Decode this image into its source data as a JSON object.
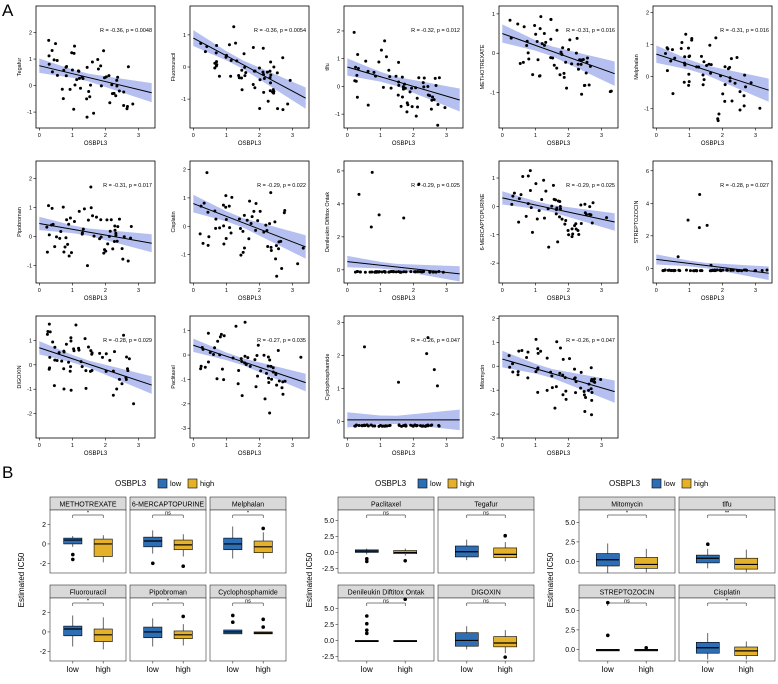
{
  "panel_labels": {
    "a": "A",
    "b": "B"
  },
  "colors": {
    "band": "#5b74e0",
    "line": "#000000",
    "low": "#2e6eb5",
    "high": "#e5b02a",
    "strip": "#d9d9d9"
  },
  "chart_data": [
    {
      "type": "scatter-grid",
      "panel": "A",
      "xlabel": "OSBPL3",
      "xlim": [
        -0.1,
        3.5
      ],
      "xticks": [
        0,
        1,
        2,
        3
      ],
      "plots": [
        {
          "ylabel": "Tegafur",
          "annotation": "R = -0.36, p = 0.0048",
          "ylim": [
            -1.6,
            3.0
          ],
          "yticks": [
            -1,
            0,
            1,
            2
          ],
          "fit": [
            0.75,
            -0.3
          ],
          "band": 0.35,
          "seed": 11
        },
        {
          "ylabel": "Fluorouracil",
          "annotation": "R = -0.36, p = 0.0054",
          "ylim": [
            -1.9,
            1.9
          ],
          "yticks": [
            -1,
            0,
            1
          ],
          "fit": [
            0.9,
            -0.55
          ],
          "band": 0.32,
          "seed": 12
        },
        {
          "ylabel": "tlfu",
          "annotation": "R = -0.32, p = 0.012",
          "ylim": [
            -1.5,
            2.9
          ],
          "yticks": [
            -1,
            0,
            1,
            2
          ],
          "fit": [
            0.7,
            -0.35
          ],
          "band": 0.4,
          "seed": 13
        },
        {
          "ylabel": "METHOTREXATE",
          "annotation": "R = -0.31, p = 0.016",
          "ylim": [
            -1.9,
            1.2
          ],
          "yticks": [
            -1,
            0,
            1
          ],
          "fit": [
            0.5,
            -0.3
          ],
          "band": 0.3,
          "seed": 14
        },
        {
          "ylabel": "Melphalan",
          "annotation": "R = -0.31, p = 0.016",
          "ylim": [
            -1.6,
            2.2
          ],
          "yticks": [
            -1,
            0,
            1,
            2
          ],
          "fit": [
            0.7,
            -0.33
          ],
          "band": 0.35,
          "seed": 15
        },
        {
          "ylabel": "Pipobroman",
          "annotation": "R = -0.31, p = 0.017",
          "ylim": [
            -1.6,
            2.6
          ],
          "yticks": [
            -1,
            0,
            1,
            2
          ],
          "fit": [
            0.45,
            -0.2
          ],
          "band": 0.3,
          "seed": 16
        },
        {
          "ylabel": "Cisplatin",
          "annotation": "R = -0.29, p = 0.022",
          "ylim": [
            -2.0,
            2.3
          ],
          "yticks": [
            -1,
            0,
            1,
            2
          ],
          "fit": [
            0.8,
            -0.45
          ],
          "band": 0.4,
          "seed": 17
        },
        {
          "ylabel": "Denileukin Diftitox Ontak",
          "annotation": "R = -0.29, p = 0.025",
          "ylim": [
            -0.8,
            6.6
          ],
          "yticks": [
            0,
            2,
            4,
            6
          ],
          "fit": [
            0.5,
            -0.22
          ],
          "band": 0.45,
          "seed": 18,
          "flat": true
        },
        {
          "ylabel": "6-MERCAPTOPURINE",
          "annotation": "R = -0.29, p = 0.025",
          "ylim": [
            -2.7,
            1.6
          ],
          "yticks": [
            -2,
            -1,
            0,
            1
          ],
          "fit": [
            0.3,
            -0.25
          ],
          "band": 0.3,
          "seed": 19
        },
        {
          "ylabel": "STREPTOZOCIN",
          "annotation": "R = -0.28, p = 0.027",
          "ylim": [
            -0.9,
            6.6
          ],
          "yticks": [
            0,
            2,
            4,
            6
          ],
          "fit": [
            0.55,
            -0.25
          ],
          "band": 0.4,
          "seed": 20,
          "flat": true
        },
        {
          "ylabel": "DIGOXIN",
          "annotation": "R = -0.28, p = 0.029",
          "ylim": [
            -3.0,
            2.0
          ],
          "yticks": [
            -2,
            -1,
            0,
            1
          ],
          "fit": [
            0.7,
            -0.45
          ],
          "band": 0.35,
          "seed": 21
        },
        {
          "ylabel": "Paclitaxel",
          "annotation": "R = -0.27, p = 0.035",
          "ylim": [
            -3.4,
            1.6
          ],
          "yticks": [
            -3,
            -2,
            -1,
            0,
            1
          ],
          "fit": [
            0.4,
            -0.45
          ],
          "band": 0.35,
          "seed": 22
        },
        {
          "ylabel": "Cyclophosphamide",
          "annotation": "R = -0.26, p = 0.047",
          "ylim": [
            -0.5,
            3.2
          ],
          "yticks": [
            0,
            1,
            2,
            3
          ],
          "fit": [
            0.05,
            0.0
          ],
          "band": 0.3,
          "seed": 23,
          "flat": true
        },
        {
          "ylabel": "Mitomycin",
          "annotation": "R = -0.26, p = 0.047",
          "ylim": [
            -3.0,
            2.1
          ],
          "yticks": [
            -3,
            -2,
            -1,
            0,
            1,
            2
          ],
          "fit": [
            0.3,
            -0.4
          ],
          "band": 0.45,
          "seed": 24
        }
      ]
    },
    {
      "type": "boxplot-grid",
      "panel": "B",
      "legend_title": "OSBPL3",
      "legend_labels": [
        "low",
        "high"
      ],
      "ylabel": "Estimated IC50",
      "categories": [
        "low",
        "high"
      ],
      "groups": [
        {
          "yticks": [
            -2,
            0,
            2
          ],
          "ylim": [
            -3.0,
            3.5
          ],
          "facets": [
            {
              "title": "METHOTREXATE",
              "sig": "*",
              "low": {
                "q1": 0.0,
                "med": 0.4,
                "q3": 0.6,
                "wl": -0.3,
                "wh": 0.8,
                "out": [
                  -1.1,
                  -1.6
                ]
              },
              "high": {
                "q1": -1.3,
                "med": 0.0,
                "q3": 0.5,
                "wl": -1.9,
                "wh": 0.9,
                "out": []
              }
            },
            {
              "title": "6-MERCAPTOPURINE",
              "sig": "ns",
              "low": {
                "q1": -0.3,
                "med": 0.3,
                "q3": 0.7,
                "wl": -1.0,
                "wh": 1.4,
                "out": [
                  -2.0
                ]
              },
              "high": {
                "q1": -0.6,
                "med": -0.1,
                "q3": 0.4,
                "wl": -1.3,
                "wh": 1.0,
                "out": [
                  -2.3
                ]
              }
            },
            {
              "title": "Melphalan",
              "sig": "*",
              "low": {
                "q1": -0.6,
                "med": 0.0,
                "q3": 0.6,
                "wl": -1.5,
                "wh": 1.8,
                "out": []
              },
              "high": {
                "q1": -0.9,
                "med": -0.3,
                "q3": 0.3,
                "wl": -1.5,
                "wh": 1.2,
                "out": [
                  1.6
                ]
              }
            },
            {
              "title": "Fluorouracil",
              "sig": "*",
              "low": {
                "q1": -0.4,
                "med": 0.3,
                "q3": 0.6,
                "wl": -1.5,
                "wh": 1.7,
                "out": []
              },
              "high": {
                "q1": -1.0,
                "med": -0.3,
                "q3": 0.3,
                "wl": -1.8,
                "wh": 1.5,
                "out": []
              }
            },
            {
              "title": "Pipobroman",
              "sig": "*",
              "low": {
                "q1": -0.6,
                "med": 0.0,
                "q3": 0.5,
                "wl": -1.5,
                "wh": 1.4,
                "out": []
              },
              "high": {
                "q1": -0.7,
                "med": -0.3,
                "q3": 0.1,
                "wl": -1.4,
                "wh": 0.8,
                "out": [
                  1.6
                ]
              }
            },
            {
              "title": "Cyclophosphamide",
              "sig": "ns",
              "low": {
                "q1": -0.2,
                "med": 0.0,
                "q3": 0.2,
                "wl": -0.2,
                "wh": 0.2,
                "out": [
                  1.7,
                  1.0
                ]
              },
              "high": {
                "q1": -0.2,
                "med": -0.1,
                "q3": 0.0,
                "wl": -0.2,
                "wh": 0.0,
                "out": [
                  1.3,
                  0.5
                ]
              }
            }
          ]
        },
        {
          "yticks": [
            -2.5,
            0.0,
            2.5,
            5.0
          ],
          "ylim": [
            -3.2,
            6.6
          ],
          "facets": [
            {
              "title": "Paclitaxel",
              "sig": "ns",
              "low": {
                "q1": 0.0,
                "med": 0.2,
                "q3": 0.4,
                "wl": -0.3,
                "wh": 0.6,
                "out": [
                  -1.0,
                  -1.4
                ]
              },
              "high": {
                "q1": -0.2,
                "med": 0.0,
                "q3": 0.3,
                "wl": -0.5,
                "wh": 0.6,
                "out": [
                  -1.3
                ]
              }
            },
            {
              "title": "Tegafur",
              "sig": "ns",
              "low": {
                "q1": -0.7,
                "med": 0.1,
                "q3": 1.0,
                "wl": -1.2,
                "wh": 2.0,
                "out": []
              },
              "high": {
                "q1": -0.8,
                "med": -0.3,
                "q3": 0.7,
                "wl": -1.4,
                "wh": 1.6,
                "out": [
                  2.6
                ]
              }
            },
            {
              "title": "Denileukin Diftitox Ontak",
              "sig": "ns",
              "low": {
                "q1": -0.2,
                "med": -0.1,
                "q3": 0.0,
                "wl": -0.2,
                "wh": 0.0,
                "out": [
                  3.8,
                  2.6,
                  1.6,
                  1.1
                ]
              },
              "high": {
                "q1": -0.2,
                "med": -0.1,
                "q3": 0.0,
                "wl": -0.2,
                "wh": 0.0,
                "out": [
                  6.4
                ]
              }
            },
            {
              "title": "DIGOXIN",
              "sig": "ns",
              "low": {
                "q1": -0.9,
                "med": 0.0,
                "q3": 1.2,
                "wl": -1.4,
                "wh": 2.2,
                "out": []
              },
              "high": {
                "q1": -1.0,
                "med": -0.4,
                "q3": 0.6,
                "wl": -2.0,
                "wh": 1.6,
                "out": [
                  -2.6
                ]
              }
            }
          ]
        },
        {
          "yticks": [
            0.0,
            2.5,
            5.0
          ],
          "ylim": [
            -1.5,
            6.6
          ],
          "facets": [
            {
              "title": "Mitomycin",
              "sig": "*",
              "low": {
                "q1": -0.6,
                "med": 0.2,
                "q3": 1.0,
                "wl": -1.5,
                "wh": 2.3,
                "out": []
              },
              "high": {
                "q1": -0.9,
                "med": -0.4,
                "q3": 0.5,
                "wl": -1.4,
                "wh": 1.6,
                "out": []
              }
            },
            {
              "title": "tlfu",
              "sig": "**",
              "low": {
                "q1": -0.2,
                "med": 0.4,
                "q3": 0.8,
                "wl": -0.9,
                "wh": 1.6,
                "out": [
                  2.2
                ]
              },
              "high": {
                "q1": -1.0,
                "med": -0.4,
                "q3": 0.4,
                "wl": -1.4,
                "wh": 1.5,
                "out": []
              }
            },
            {
              "title": "STREPTOZOCIN",
              "sig": "ns",
              "low": {
                "q1": -0.2,
                "med": -0.1,
                "q3": 0.0,
                "wl": -0.2,
                "wh": 0.0,
                "out": [
                  6.0,
                  1.8
                ]
              },
              "high": {
                "q1": -0.2,
                "med": -0.1,
                "q3": 0.0,
                "wl": -0.2,
                "wh": 0.0,
                "out": [
                  0.2
                ]
              }
            },
            {
              "title": "Cisplatin",
              "sig": "*",
              "low": {
                "q1": -0.5,
                "med": 0.2,
                "q3": 0.9,
                "wl": -1.3,
                "wh": 2.1,
                "out": []
              },
              "high": {
                "q1": -0.8,
                "med": -0.2,
                "q3": 0.3,
                "wl": -1.3,
                "wh": 1.0,
                "out": []
              }
            }
          ]
        }
      ]
    }
  ]
}
